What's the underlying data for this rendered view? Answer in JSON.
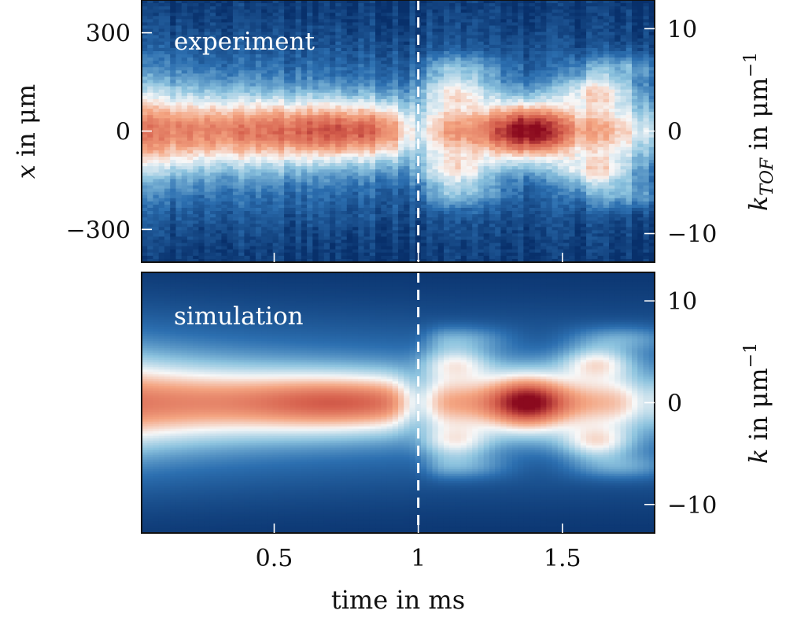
{
  "chart_data": [
    {
      "type": "heatmap",
      "label": "experiment",
      "xlim": [
        0.04,
        1.82
      ],
      "ylim": [
        -400,
        400
      ],
      "ylabel_left_var": "x",
      "ylabel_left_rest": " in μm",
      "left_yticks": [
        {
          "value": 300,
          "label": "300"
        },
        {
          "value": 0,
          "label": "0"
        },
        {
          "value": -300,
          "label": "−300"
        }
      ],
      "right_ylim": [
        -12.8,
        12.8
      ],
      "ylabel_right_var": "k",
      "ylabel_right_sub": "TOF",
      "ylabel_right_rest": " in μm",
      "ylabel_right_exp": "−1",
      "right_yticks": [
        {
          "value": 10,
          "label": "10"
        },
        {
          "value": 0,
          "label": "0"
        },
        {
          "value": -10,
          "label": "−10"
        }
      ],
      "colormap": [
        "#08306b",
        "#2c6fb0",
        "#8ec4df",
        "#f7f7f7",
        "#f4a582",
        "#d6604d",
        "#8b0a1e"
      ],
      "noisy": true,
      "marker_x": 1.0
    },
    {
      "type": "heatmap",
      "label": "simulation",
      "xlim": [
        0.04,
        1.82
      ],
      "right_ylim": [
        -12.8,
        12.8
      ],
      "ylabel_right_var": "k",
      "ylabel_right_rest": " in μm",
      "ylabel_right_exp": "−1",
      "right_yticks": [
        {
          "value": 10,
          "label": "10"
        },
        {
          "value": 0,
          "label": "0"
        },
        {
          "value": -10,
          "label": "−10"
        }
      ],
      "xlabel": "time in ms",
      "xticks": [
        {
          "value": 0.5,
          "label": "0.5"
        },
        {
          "value": 1.0,
          "label": "1"
        },
        {
          "value": 1.5,
          "label": "1.5"
        }
      ],
      "colormap": [
        "#08306b",
        "#2c6fb0",
        "#8ec4df",
        "#f7f7f7",
        "#f4a582",
        "#d6604d",
        "#8b0a1e"
      ],
      "noisy": false,
      "marker_x": 1.0
    }
  ]
}
